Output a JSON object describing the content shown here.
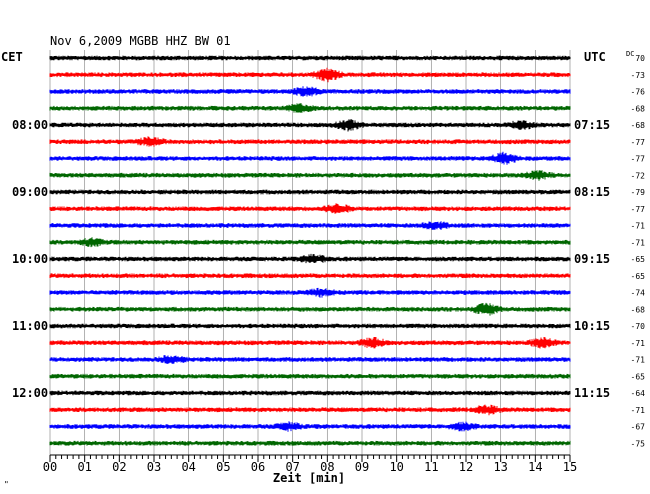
{
  "header": {
    "title": "Nov 6,2009   MGBB HHZ BW 01",
    "left_timezone": "CET",
    "right_timezone": "UTC",
    "dc_label": "DC",
    "footnote": "\""
  },
  "chart_data": {
    "type": "line",
    "description": "Helicorder seismogram, 15-minute rows",
    "xlabel": "Zeit [min]",
    "xlim": [
      0,
      15
    ],
    "x_ticks": [
      "00",
      "01",
      "02",
      "03",
      "04",
      "05",
      "06",
      "07",
      "08",
      "09",
      "10",
      "11",
      "12",
      "13",
      "14",
      "15"
    ],
    "row_cycle_colors": [
      "#000000",
      "#ff0000",
      "#0000ff",
      "#006600"
    ],
    "rows": 24,
    "left_hour_labels": [
      {
        "row": 4,
        "label": "08:00"
      },
      {
        "row": 8,
        "label": "09:00"
      },
      {
        "row": 12,
        "label": "10:00"
      },
      {
        "row": 16,
        "label": "11:00"
      },
      {
        "row": 20,
        "label": "12:00"
      }
    ],
    "right_hour_labels": [
      {
        "row": 4,
        "label": "07:15"
      },
      {
        "row": 8,
        "label": "08:15"
      },
      {
        "row": 12,
        "label": "09:15"
      },
      {
        "row": 16,
        "label": "10:15"
      },
      {
        "row": 20,
        "label": "11:15"
      }
    ],
    "dc_offsets": [
      "70",
      "-73",
      "-76",
      "-68",
      "-68",
      "-77",
      "-77",
      "-72",
      "-79",
      "-77",
      "-71",
      "-71",
      "-65",
      "-65",
      "-74",
      "-68",
      "-70",
      "-71",
      "-71",
      "-65",
      "-64",
      "-71",
      "-67",
      "-75"
    ],
    "events": [
      {
        "row": 1,
        "minute": 8.0,
        "amplitude": 2.2
      },
      {
        "row": 2,
        "minute": 7.4,
        "amplitude": 1.6
      },
      {
        "row": 3,
        "minute": 7.2,
        "amplitude": 1.4
      },
      {
        "row": 4,
        "minute": 8.6,
        "amplitude": 1.8
      },
      {
        "row": 4,
        "minute": 13.6,
        "amplitude": 1.4
      },
      {
        "row": 5,
        "minute": 2.9,
        "amplitude": 1.5
      },
      {
        "row": 6,
        "minute": 13.1,
        "amplitude": 2.0
      },
      {
        "row": 7,
        "minute": 14.1,
        "amplitude": 1.4
      },
      {
        "row": 9,
        "minute": 8.3,
        "amplitude": 1.5
      },
      {
        "row": 10,
        "minute": 11.1,
        "amplitude": 1.4
      },
      {
        "row": 11,
        "minute": 1.2,
        "amplitude": 1.3
      },
      {
        "row": 12,
        "minute": 7.6,
        "amplitude": 1.4
      },
      {
        "row": 14,
        "minute": 7.8,
        "amplitude": 1.4
      },
      {
        "row": 15,
        "minute": 12.6,
        "amplitude": 2.1
      },
      {
        "row": 17,
        "minute": 9.3,
        "amplitude": 1.7
      },
      {
        "row": 17,
        "minute": 14.2,
        "amplitude": 1.6
      },
      {
        "row": 18,
        "minute": 3.5,
        "amplitude": 1.3
      },
      {
        "row": 21,
        "minute": 12.6,
        "amplitude": 1.5
      },
      {
        "row": 22,
        "minute": 6.9,
        "amplitude": 1.3
      },
      {
        "row": 22,
        "minute": 11.9,
        "amplitude": 1.3
      }
    ]
  }
}
